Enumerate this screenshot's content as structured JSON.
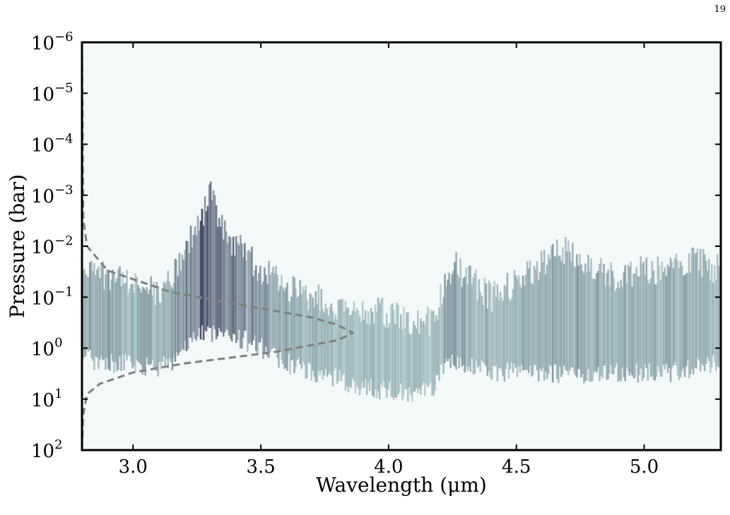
{
  "page": {
    "number": "19"
  },
  "chart_data": {
    "type": "heatmap",
    "xlabel": "Wavelength (μm)",
    "ylabel": "Pressure (bar)",
    "xlim": [
      2.8,
      5.3
    ],
    "ylim_bar": [
      100,
      1e-06
    ],
    "y_scale": "log",
    "y_inverted": true,
    "grid": false,
    "x_ticks": [
      3.0,
      3.5,
      4.0,
      4.5,
      5.0
    ],
    "x_tick_labels": [
      "3.0",
      "3.5",
      "4.0",
      "4.5",
      "5.0"
    ],
    "y_ticks_exponent": [
      -6,
      -5,
      -4,
      -3,
      -2,
      -1,
      0,
      1,
      2
    ],
    "y_tick_label_base": "10",
    "y_tick_label_exponents": [
      "−6",
      "−5",
      "−4",
      "−3",
      "−2",
      "−1",
      "0",
      "1",
      "2"
    ],
    "background_color": "#f3f8f8",
    "contribution_color_low": "#a8c9c9",
    "contribution_color_high": "#3a3f5c",
    "contribution_band": {
      "description_points": [
        {
          "wavelength": 2.8,
          "p_top": 0.03,
          "p_bottom": 1.5,
          "intensity": 0.45
        },
        {
          "wavelength": 2.9,
          "p_top": 0.04,
          "p_bottom": 2.0,
          "intensity": 0.5
        },
        {
          "wavelength": 3.0,
          "p_top": 0.06,
          "p_bottom": 2.0,
          "intensity": 0.45
        },
        {
          "wavelength": 3.1,
          "p_top": 0.08,
          "p_bottom": 2.5,
          "intensity": 0.45
        },
        {
          "wavelength": 3.15,
          "p_top": 0.04,
          "p_bottom": 1.8,
          "intensity": 0.55
        },
        {
          "wavelength": 3.2,
          "p_top": 0.01,
          "p_bottom": 0.8,
          "intensity": 0.7
        },
        {
          "wavelength": 3.25,
          "p_top": 0.005,
          "p_bottom": 0.6,
          "intensity": 0.8
        },
        {
          "wavelength": 3.3,
          "p_top": 0.001,
          "p_bottom": 0.5,
          "intensity": 0.95
        },
        {
          "wavelength": 3.35,
          "p_top": 0.005,
          "p_bottom": 0.5,
          "intensity": 0.85
        },
        {
          "wavelength": 3.4,
          "p_top": 0.01,
          "p_bottom": 0.6,
          "intensity": 0.75
        },
        {
          "wavelength": 3.5,
          "p_top": 0.03,
          "p_bottom": 1.0,
          "intensity": 0.6
        },
        {
          "wavelength": 3.6,
          "p_top": 0.06,
          "p_bottom": 2.0,
          "intensity": 0.45
        },
        {
          "wavelength": 3.7,
          "p_top": 0.1,
          "p_bottom": 3.0,
          "intensity": 0.4
        },
        {
          "wavelength": 3.8,
          "p_top": 0.15,
          "p_bottom": 4.0,
          "intensity": 0.35
        },
        {
          "wavelength": 3.9,
          "p_top": 0.2,
          "p_bottom": 6.0,
          "intensity": 0.32
        },
        {
          "wavelength": 4.0,
          "p_top": 0.2,
          "p_bottom": 7.0,
          "intensity": 0.3
        },
        {
          "wavelength": 4.1,
          "p_top": 0.3,
          "p_bottom": 9.0,
          "intensity": 0.3
        },
        {
          "wavelength": 4.17,
          "p_top": 0.3,
          "p_bottom": 6.0,
          "intensity": 0.3
        },
        {
          "wavelength": 4.2,
          "p_top": 0.1,
          "p_bottom": 3.0,
          "intensity": 0.4
        },
        {
          "wavelength": 4.25,
          "p_top": 0.02,
          "p_bottom": 2.0,
          "intensity": 0.55
        },
        {
          "wavelength": 4.3,
          "p_top": 0.04,
          "p_bottom": 2.0,
          "intensity": 0.45
        },
        {
          "wavelength": 4.4,
          "p_top": 0.1,
          "p_bottom": 3.0,
          "intensity": 0.38
        },
        {
          "wavelength": 4.5,
          "p_top": 0.05,
          "p_bottom": 3.0,
          "intensity": 0.42
        },
        {
          "wavelength": 4.6,
          "p_top": 0.02,
          "p_bottom": 3.0,
          "intensity": 0.48
        },
        {
          "wavelength": 4.7,
          "p_top": 0.01,
          "p_bottom": 3.5,
          "intensity": 0.5
        },
        {
          "wavelength": 4.8,
          "p_top": 0.03,
          "p_bottom": 3.5,
          "intensity": 0.45
        },
        {
          "wavelength": 4.9,
          "p_top": 0.04,
          "p_bottom": 3.0,
          "intensity": 0.42
        },
        {
          "wavelength": 5.0,
          "p_top": 0.03,
          "p_bottom": 3.0,
          "intensity": 0.45
        },
        {
          "wavelength": 5.1,
          "p_top": 0.03,
          "p_bottom": 3.0,
          "intensity": 0.45
        },
        {
          "wavelength": 5.2,
          "p_top": 0.02,
          "p_bottom": 2.5,
          "intensity": 0.45
        },
        {
          "wavelength": 5.3,
          "p_top": 0.03,
          "p_bottom": 2.0,
          "intensity": 0.45
        }
      ]
    },
    "series": [
      {
        "style": "dashed",
        "color": "#808080",
        "points": [
          {
            "pressure": 1e-06,
            "wavelength": 2.8
          },
          {
            "pressure": 0.003,
            "wavelength": 2.805
          },
          {
            "pressure": 0.01,
            "wavelength": 2.82
          },
          {
            "pressure": 0.03,
            "wavelength": 2.9
          },
          {
            "pressure": 0.08,
            "wavelength": 3.15
          },
          {
            "pressure": 0.15,
            "wavelength": 3.45
          },
          {
            "pressure": 0.25,
            "wavelength": 3.7
          },
          {
            "pressure": 0.35,
            "wavelength": 3.8
          },
          {
            "pressure": 0.5,
            "wavelength": 3.86
          },
          {
            "pressure": 0.7,
            "wavelength": 3.8
          },
          {
            "pressure": 1.2,
            "wavelength": 3.55
          },
          {
            "pressure": 2.0,
            "wavelength": 3.2
          },
          {
            "pressure": 3.0,
            "wavelength": 3.0
          },
          {
            "pressure": 5.0,
            "wavelength": 2.87
          },
          {
            "pressure": 8.0,
            "wavelength": 2.82
          },
          {
            "pressure": 20.0,
            "wavelength": 2.805
          },
          {
            "pressure": 100.0,
            "wavelength": 2.8
          }
        ]
      }
    ]
  }
}
